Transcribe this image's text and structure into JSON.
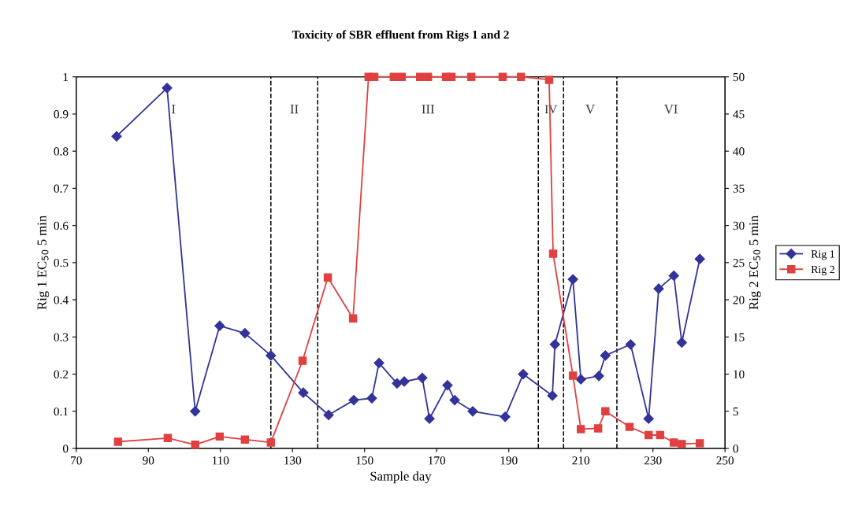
{
  "chart_data": {
    "type": "line",
    "title": "Toxicity of SBR effluent from Rigs 1 and 2",
    "xlabel": "Sample day",
    "ylabel": "Rig 1 EC$_{50}$ 5 min",
    "y2label": "Rig 2 EC$_{50}$ 5 min",
    "xlim": [
      70,
      250
    ],
    "xticks": [
      70,
      90,
      110,
      130,
      150,
      170,
      190,
      210,
      230,
      250
    ],
    "ylim": [
      0,
      1
    ],
    "yticks": [
      0,
      0.1,
      0.2,
      0.3,
      0.4,
      0.5,
      0.6,
      0.7,
      0.8,
      0.9,
      1
    ],
    "y2lim": [
      0,
      50
    ],
    "y2ticks": [
      0,
      5,
      10,
      15,
      20,
      25,
      30,
      35,
      40,
      45,
      50
    ],
    "grid": false,
    "legend": "right",
    "series": [
      {
        "name": "Rig 1",
        "color": "#333399",
        "marker": "diamond",
        "x": [
          81.2,
          95.2,
          103,
          109.8,
          116.8,
          124,
          133,
          140,
          147,
          152,
          154,
          159,
          161,
          166,
          168,
          173,
          175,
          180,
          189,
          194,
          202.1,
          202.8,
          207.8,
          210,
          215,
          216.8,
          223.8,
          228.8,
          231.6,
          235.8,
          238,
          243
        ],
        "values": [
          0.84,
          0.97,
          0.1,
          0.33,
          0.31,
          0.25,
          0.15,
          0.09,
          0.13,
          0.135,
          0.23,
          0.175,
          0.18,
          0.19,
          0.08,
          0.17,
          0.13,
          0.1,
          0.085,
          0.2,
          0.142,
          0.28,
          0.455,
          0.186,
          0.195,
          0.25,
          0.28,
          0.08,
          0.43,
          0.465,
          0.285,
          0.51
        ]
      },
      {
        "name": "Rig 2",
        "color": "#e04040",
        "marker": "square",
        "axis": "y2",
        "x": [
          81.6,
          95.4,
          103,
          109.8,
          116.8,
          124,
          132.8,
          139.8,
          146.8,
          151.1,
          152.7,
          158.1,
          160.3,
          165.4,
          167.6,
          172.6,
          174.1,
          179.6,
          188.3,
          193.4,
          201.2,
          202.3,
          207.8,
          210,
          214.8,
          216.8,
          223.5,
          228.8,
          232,
          235.8,
          238,
          243
        ],
        "values": [
          0.9,
          1.4,
          0.5,
          1.6,
          1.2,
          0.8,
          11.8,
          23,
          17.5,
          50,
          50,
          50,
          50,
          50,
          50,
          50,
          50,
          50,
          50,
          50,
          49.6,
          26.2,
          9.8,
          2.6,
          2.7,
          5,
          2.9,
          1.8,
          1.8,
          0.8,
          0.6,
          0.7
        ]
      }
    ],
    "ref_lines": [
      {
        "axis": "x",
        "value": 124,
        "color": "#000000",
        "line_style": "dashed"
      },
      {
        "axis": "x",
        "value": 137,
        "color": "#000000",
        "line_style": "dashed"
      },
      {
        "axis": "x",
        "value": 198.2,
        "color": "#000000",
        "line_style": "dashed"
      },
      {
        "axis": "x",
        "value": 205.2,
        "color": "#000000",
        "line_style": "dashed"
      },
      {
        "axis": "x",
        "value": 220,
        "color": "#000000",
        "line_style": "dashed"
      }
    ],
    "annotations": [
      "I",
      "II",
      "III",
      "IV",
      "V",
      "VI"
    ]
  }
}
